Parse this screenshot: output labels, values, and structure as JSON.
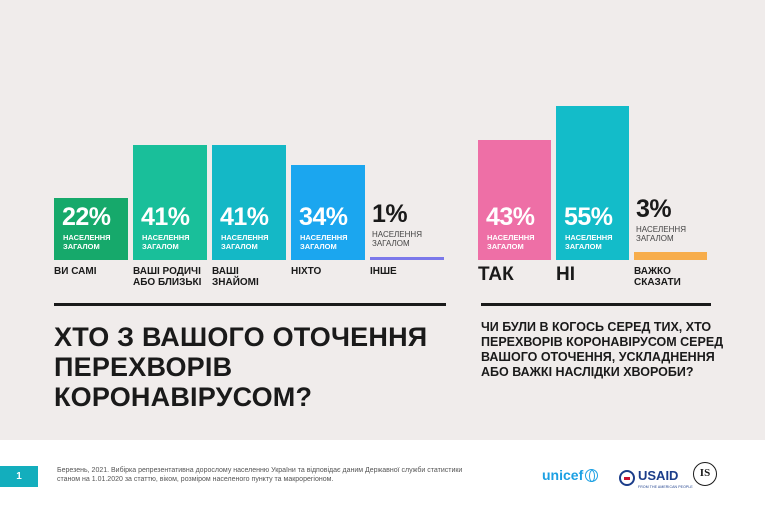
{
  "chart_data": [
    {
      "type": "bar",
      "title": "Хто з вашого оточення перехворів коронавірусом?",
      "categories": [
        "Ви самі",
        "Ваші родичі або близькі",
        "Ваші знайомі",
        "Ніхто",
        "Інше"
      ],
      "values": [
        22,
        41,
        41,
        34,
        1
      ],
      "value_labels": [
        "22%",
        "41%",
        "41%",
        "34%",
        "1%"
      ],
      "value_sublabel": "населення загалом",
      "colors": [
        "#16a96b",
        "#19bf9a",
        "#14b8c6",
        "#1ba6ef",
        "#7b78ea"
      ],
      "ylim": [
        0,
        100
      ]
    },
    {
      "type": "bar",
      "title": "Чи були в когось серед тих, хто перехворів коронавірусом серед вашого оточення, ускладнення або важкі наслідки хвороби?",
      "categories": [
        "Так",
        "Ні",
        "Важко сказати"
      ],
      "values": [
        43,
        55,
        3
      ],
      "value_labels": [
        "43%",
        "55%",
        "3%"
      ],
      "value_sublabel": "населення загалом",
      "colors": [
        "#ee6fa6",
        "#13bcc9",
        "#f7ad4b"
      ],
      "ylim": [
        0,
        100
      ]
    }
  ],
  "footer": {
    "page_number": "1",
    "note": "Березень, 2021. Вибірка репрезентативна дорослому населенню України та відповідає даним Державної служби статистики станом на 1.01.2020 за статтю, віком, розміром населеного пункту та макрорегіоном.",
    "logo_unicef": "unicef",
    "logo_usaid": "USAID",
    "logo_usaid_sub": "FROM THE AMERICAN PEOPLE",
    "logo_is": "IS"
  }
}
